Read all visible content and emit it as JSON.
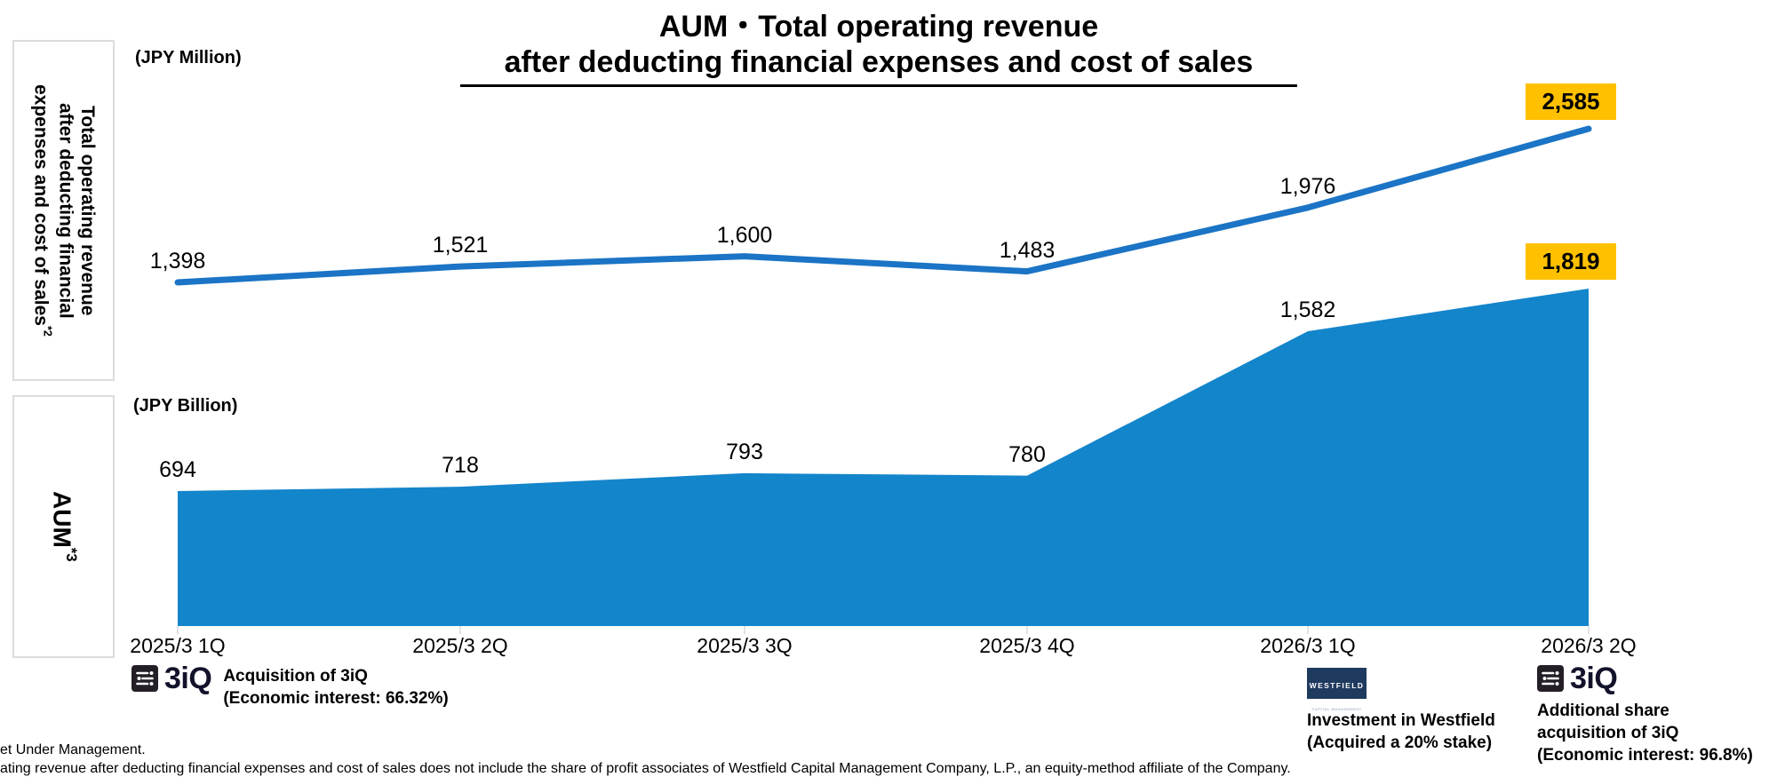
{
  "title": {
    "line1": "AUM・Total operating revenue",
    "line2": "after deducting financial expenses and cost of sales"
  },
  "axis_labels": {
    "top_unit": "(JPY Million)",
    "bottom_unit": "(JPY Billion)"
  },
  "side_labels": {
    "revenue": {
      "lines": [
        "Total operating revenue",
        "after deducting financial",
        "expenses and cost of sales"
      ],
      "sup": "*2"
    },
    "aum": {
      "text": "AUM",
      "sup": "*3"
    }
  },
  "chart_data": [
    {
      "type": "line",
      "name": "Total operating revenue after deducting financial expenses and cost of sales",
      "unit": "JPY Million",
      "categories": [
        "2025/3 1Q",
        "2025/3 2Q",
        "2025/3 3Q",
        "2025/3 4Q",
        "2026/3 1Q",
        "2026/3 2Q"
      ],
      "values": [
        1398,
        1521,
        1600,
        1483,
        1976,
        2585
      ],
      "labels": [
        "1,398",
        "1,521",
        "1,600",
        "1,483",
        "1,976",
        "2,585"
      ],
      "highlight_last": true,
      "legend": "none",
      "grid": false
    },
    {
      "type": "area",
      "name": "AUM",
      "unit": "JPY Billion",
      "categories": [
        "2025/3 1Q",
        "2025/3 2Q",
        "2025/3 3Q",
        "2025/3 4Q",
        "2026/3 1Q",
        "2026/3 2Q"
      ],
      "values": [
        694,
        718,
        793,
        780,
        1582,
        1819
      ],
      "labels": [
        "694",
        "718",
        "793",
        "780",
        "1,582",
        "1,819"
      ],
      "highlight_last": true,
      "legend": "none",
      "grid": false
    }
  ],
  "x_labels": [
    "2025/3 1Q",
    "2025/3 2Q",
    "2025/3 3Q",
    "2025/3 4Q",
    "2026/3 1Q",
    "2026/3 2Q"
  ],
  "annotations": [
    {
      "logo_text": "3iQ",
      "lines": [
        "Acquisition of 3iQ",
        "(Economic interest: 66.32%)"
      ]
    },
    {
      "logo_text": "WESTFIELD",
      "logo_sub": "CAPITAL MANAGEMENT",
      "lines": [
        "Investment in Westfield",
        "(Acquired a 20% stake)"
      ]
    },
    {
      "logo_text": "3iQ",
      "lines": [
        "Additional share",
        "acquisition of 3iQ",
        "(Economic interest: 96.8%)"
      ]
    }
  ],
  "footnotes": [
    "et Under Management.",
    "ating revenue after deducting financial expenses and cost of sales does not include the share of profit associates of Westfield Capital Management Company, L.P., an equity-method affiliate of the Company."
  ],
  "colors": {
    "line": "#1B74C5",
    "area": "#1385CB",
    "highlight": "#FFC000",
    "westfield_navy": "#1F3A5F",
    "logo_dark": "#241F26",
    "tick_gray": "#D9D9D9"
  }
}
